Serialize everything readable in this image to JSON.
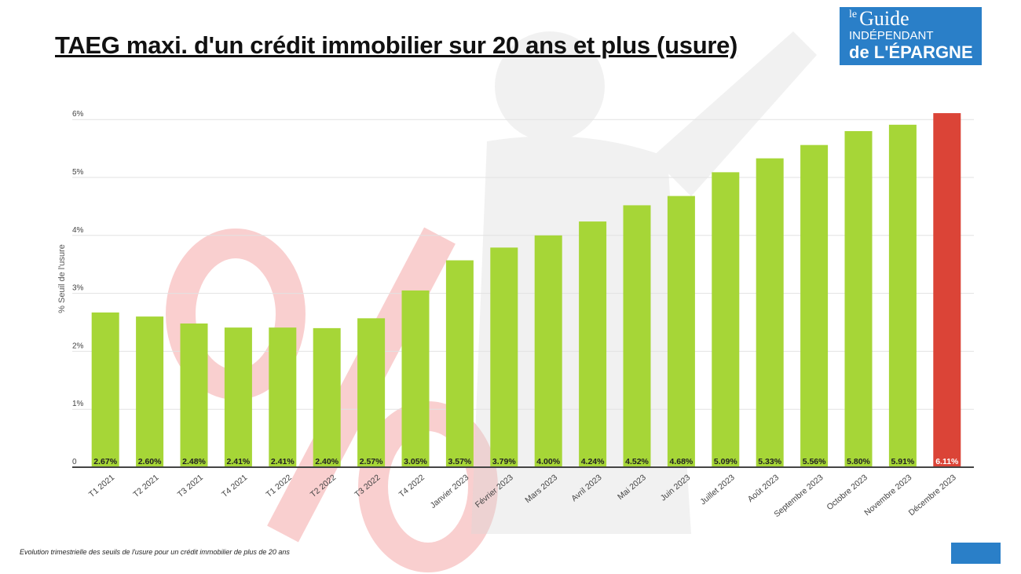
{
  "title": "TAEG maxi. d'un crédit immobilier sur 20 ans et plus (usure)",
  "caption": "Evolution trimestrielle des seuils de l'usure pour un crédit immobilier de plus de 20 ans",
  "logo": {
    "line1": "le",
    "line2": "Guide",
    "line3": "INDÉPENDANT",
    "line4": "de L'ÉPARGNE"
  },
  "colors": {
    "bar": "#a6d637",
    "highlight": "#db4437",
    "watermark": "#f5b5b5"
  },
  "chart_data": {
    "type": "bar",
    "title": "TAEG maxi. d'un crédit immobilier sur 20 ans et plus (usure)",
    "xlabel": "",
    "ylabel": "% Seuil de l'usure",
    "ylim": [
      0,
      6.2
    ],
    "yticks": [
      0,
      1,
      2,
      3,
      4,
      5,
      6
    ],
    "ytick_labels": [
      "0",
      "1%",
      "2%",
      "3%",
      "4%",
      "5%",
      "6%"
    ],
    "grid": true,
    "categories": [
      "T1 2021",
      "T2 2021",
      "T3 2021",
      "T4 2021",
      "T1 2022",
      "T2 2022",
      "T3 2022",
      "T4 2022",
      "Janvier 2023",
      "Février 2023",
      "Mars 2023",
      "Avril 2023",
      "Mai 2023",
      "Juin 2023",
      "Juillet 2023",
      "Août 2023",
      "Septembre 2023",
      "Octobre 2023",
      "Novembre 2023",
      "Décembre 2023"
    ],
    "values": [
      2.67,
      2.6,
      2.48,
      2.41,
      2.41,
      2.4,
      2.57,
      3.05,
      3.57,
      3.79,
      4.0,
      4.24,
      4.52,
      4.68,
      5.09,
      5.33,
      5.56,
      5.8,
      5.91,
      6.11
    ],
    "data_labels": [
      "2.67%",
      "2.60%",
      "2.48%",
      "2.41%",
      "2.41%",
      "2.40%",
      "2.57%",
      "3.05%",
      "3.57%",
      "3.79%",
      "4.00%",
      "4.24%",
      "4.52%",
      "4.68%",
      "5.09%",
      "5.33%",
      "5.56%",
      "5.80%",
      "5.91%",
      "6.11%"
    ],
    "highlighted": "Décembre 2023"
  }
}
